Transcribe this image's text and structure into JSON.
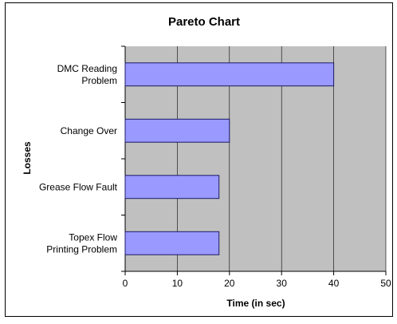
{
  "chart_data": {
    "type": "bar",
    "orientation": "horizontal",
    "title": "Pareto Chart",
    "xlabel": "Time (in sec)",
    "ylabel": "Losses",
    "xlim": [
      0,
      50
    ],
    "xticks": [
      0,
      10,
      20,
      30,
      40,
      50
    ],
    "grid": true,
    "categories": [
      [
        "DMC Reading",
        "Problem"
      ],
      [
        "Change Over"
      ],
      [
        "Grease Flow Fault"
      ],
      [
        "Topex Flow",
        "Printing Problem"
      ]
    ],
    "values": [
      40,
      20,
      18,
      18
    ],
    "colors": {
      "bar_fill": "#9999ff",
      "bar_stroke": "#1a1a66",
      "plot_bg": "#c0c0c0",
      "gridline": "#000000"
    }
  }
}
